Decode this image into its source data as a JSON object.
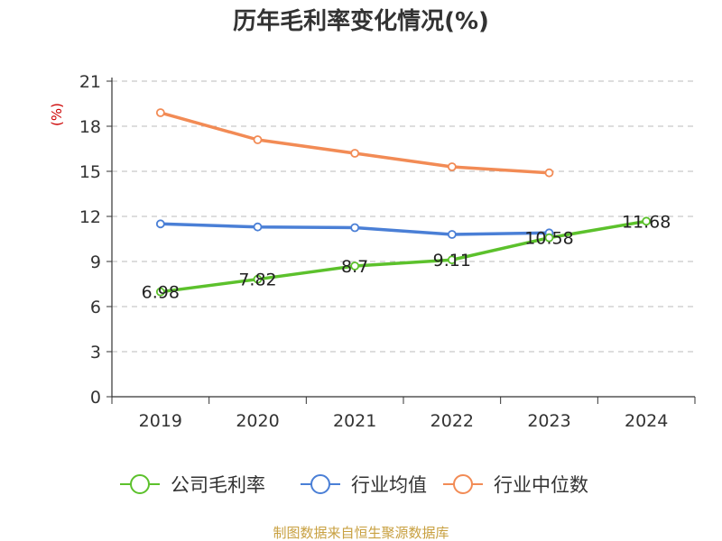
{
  "chart_data": {
    "type": "line",
    "title": "历年毛利率变化情况(%)",
    "ylabel": "(%)",
    "xlabel": "",
    "categories": [
      "2019",
      "2020",
      "2021",
      "2022",
      "2023",
      "2024"
    ],
    "ylim": [
      0,
      21
    ],
    "yticks": [
      0,
      3,
      6,
      9,
      12,
      15,
      18,
      21
    ],
    "grid": true,
    "legend_position": "bottom",
    "series": [
      {
        "name": "公司毛利率",
        "color": "#5cc12c",
        "values": [
          6.98,
          7.82,
          8.7,
          9.11,
          10.58,
          11.68
        ],
        "labels": [
          "6.98",
          "7.82",
          "8.7",
          "9.11",
          "10.58",
          "11.68"
        ]
      },
      {
        "name": "行业均值",
        "color": "#4a7fd6",
        "values": [
          11.5,
          11.3,
          11.25,
          10.8,
          10.9,
          null
        ],
        "labels": []
      },
      {
        "name": "行业中位数",
        "color": "#f28b55",
        "values": [
          18.9,
          17.1,
          16.2,
          15.3,
          14.9,
          null
        ],
        "labels": []
      }
    ]
  },
  "source_text": "制图数据来自恒生聚源数据库",
  "source_color": "#c8a040",
  "axis_color": "#333333",
  "grid_color": "#bbbbbb"
}
